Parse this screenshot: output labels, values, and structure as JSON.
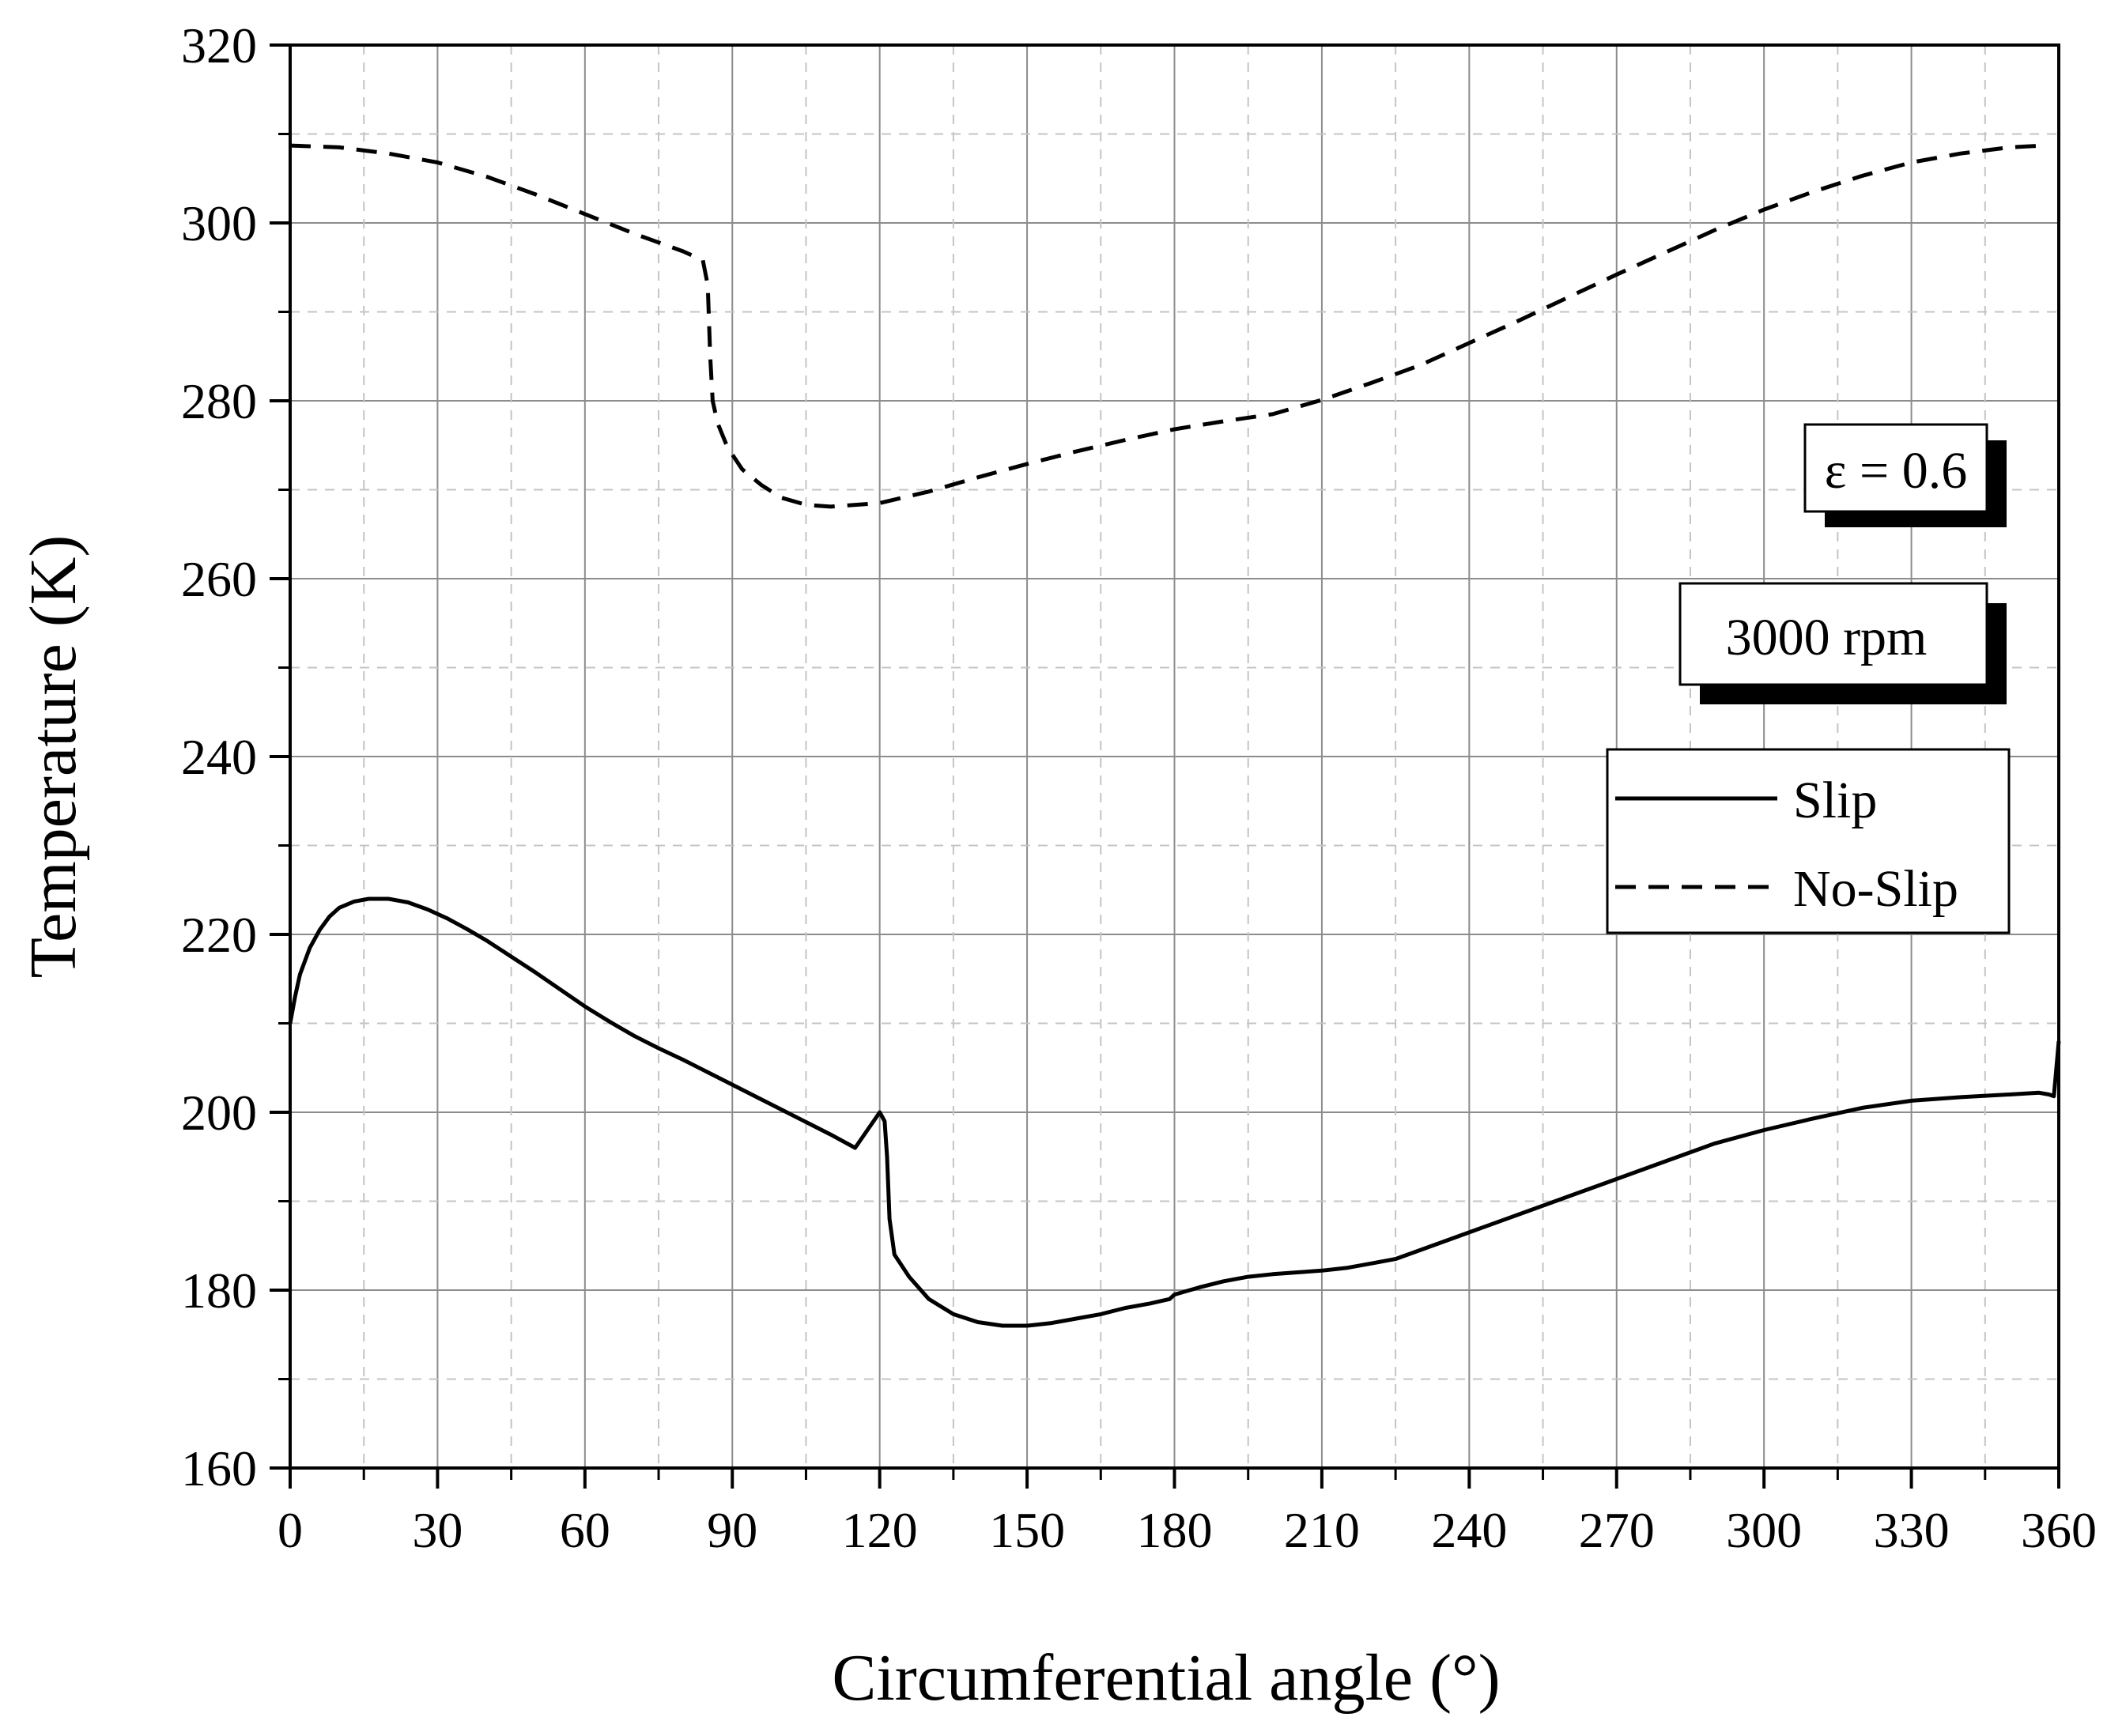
{
  "chart_data": {
    "type": "line",
    "xlabel": "Circumferential angle (°)",
    "ylabel": "Temperature (K)",
    "xlim": [
      0,
      360
    ],
    "ylim": [
      160,
      320
    ],
    "xticks": [
      0,
      30,
      60,
      90,
      120,
      150,
      180,
      210,
      240,
      270,
      300,
      330,
      360
    ],
    "yticks": [
      160,
      180,
      200,
      220,
      240,
      260,
      280,
      300,
      320
    ],
    "grid": true,
    "legend_position": "right",
    "annotations": [
      "ε = 0.6",
      "3000 rpm"
    ],
    "series": [
      {
        "name": "Slip",
        "style": "solid",
        "x": [
          0,
          1,
          2,
          4,
          6,
          8,
          10,
          13,
          16,
          20,
          24,
          28,
          32,
          36,
          40,
          45,
          50,
          55,
          60,
          65,
          70,
          75,
          80,
          85,
          90,
          95,
          100,
          105,
          110,
          115,
          120,
          121,
          121.5,
          122,
          123,
          126,
          130,
          135,
          140,
          145,
          150,
          155,
          160,
          165,
          170,
          175,
          179,
          180,
          185,
          190,
          195,
          200,
          205,
          210,
          215,
          220,
          225,
          230,
          240,
          250,
          260,
          270,
          280,
          290,
          300,
          310,
          320,
          330,
          340,
          350,
          356,
          358,
          359,
          360
        ],
        "y": [
          210,
          213,
          215.5,
          218.5,
          220.5,
          222,
          223,
          223.7,
          224,
          224,
          223.6,
          222.8,
          221.8,
          220.6,
          219.3,
          217.5,
          215.7,
          213.8,
          211.9,
          210.2,
          208.6,
          207.2,
          205.9,
          204.5,
          203.1,
          201.7,
          200.3,
          198.9,
          197.5,
          196,
          200,
          199,
          195,
          188,
          184,
          181.5,
          179,
          177.3,
          176.4,
          176,
          176,
          176.3,
          176.8,
          177.3,
          178,
          178.5,
          179,
          179.5,
          180.3,
          181,
          181.5,
          181.8,
          182,
          182.2,
          182.5,
          183,
          183.5,
          184.5,
          186.5,
          188.5,
          190.5,
          192.5,
          194.5,
          196.5,
          198,
          199.3,
          200.5,
          201.3,
          201.7,
          202,
          202.2,
          202,
          201.8,
          208
        ]
      },
      {
        "name": "No-Slip",
        "style": "dashed",
        "x": [
          0,
          10,
          20,
          30,
          40,
          50,
          60,
          70,
          80,
          84,
          85,
          85.5,
          86,
          87,
          89,
          92,
          96,
          100,
          105,
          110,
          120,
          130,
          140,
          150,
          160,
          170,
          180,
          190,
          200,
          205,
          210,
          220,
          230,
          240,
          250,
          260,
          270,
          280,
          290,
          300,
          310,
          320,
          330,
          340,
          350,
          357
        ],
        "y": [
          308.7,
          308.5,
          307.8,
          306.8,
          305.2,
          303.2,
          301,
          298.8,
          296.8,
          295.8,
          293,
          285,
          280,
          277.5,
          274.8,
          272.3,
          270.5,
          269.1,
          268.3,
          268.1,
          268.5,
          269.8,
          271.4,
          272.9,
          274.3,
          275.6,
          276.8,
          277.7,
          278.5,
          279.3,
          280.1,
          282,
          284,
          286.5,
          289,
          291.6,
          294.2,
          296.7,
          299.2,
          301.5,
          303.5,
          305.3,
          306.8,
          307.8,
          308.5,
          308.7
        ]
      }
    ]
  }
}
